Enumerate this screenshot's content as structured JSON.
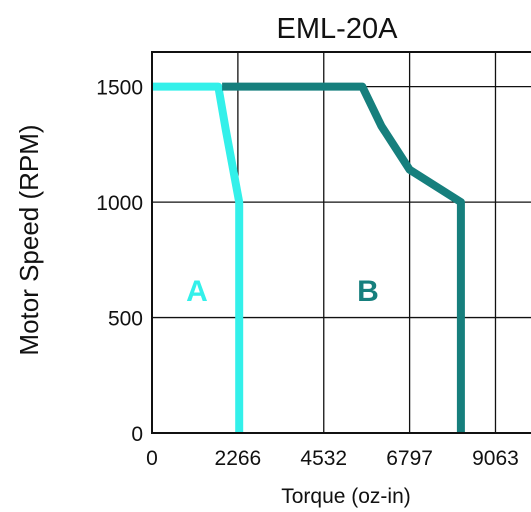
{
  "chart_data": {
    "type": "line",
    "title": "EML-20A",
    "xlabel": "Torque (oz-in)",
    "ylabel": "Motor Speed (RPM)",
    "xlim": [
      0,
      10000
    ],
    "ylim": [
      0,
      1650
    ],
    "x_ticks": [
      0,
      2266,
      4532,
      6797,
      9063
    ],
    "x_tick_labels": [
      "0",
      "2266",
      "4532",
      "6797",
      "9063"
    ],
    "y_ticks": [
      0,
      500,
      1000,
      1500
    ],
    "y_tick_labels": [
      "0",
      "500",
      "1000",
      "1500"
    ],
    "grid": true,
    "series": [
      {
        "name": "A",
        "color": "#33f0ea",
        "points": [
          [
            0,
            1500
          ],
          [
            1750,
            1500
          ],
          [
            1950,
            1310
          ],
          [
            2300,
            1000
          ],
          [
            2300,
            0
          ]
        ]
      },
      {
        "name": "B",
        "color": "#167f7d",
        "points": [
          [
            1850,
            1500
          ],
          [
            5550,
            1500
          ],
          [
            6050,
            1330
          ],
          [
            6800,
            1140
          ],
          [
            8150,
            1000
          ],
          [
            8150,
            0
          ]
        ]
      }
    ]
  }
}
